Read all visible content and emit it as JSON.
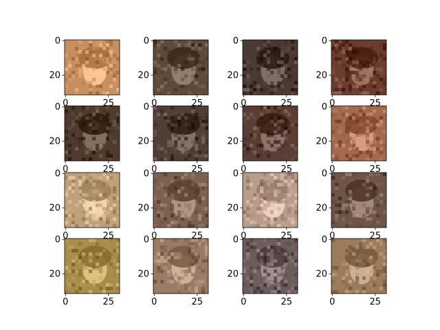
{
  "tick_labels": {
    "y": [
      "0",
      "20"
    ],
    "x": [
      "0",
      "25"
    ]
  },
  "subplots": [
    {
      "tone": "#c89060"
    },
    {
      "tone": "#5c4a3a"
    },
    {
      "tone": "#4b3a34"
    },
    {
      "tone": "#6a3d2e"
    },
    {
      "tone": "#4f3b2c"
    },
    {
      "tone": "#4f3f34"
    },
    {
      "tone": "#5a3d34"
    },
    {
      "tone": "#a2694f"
    },
    {
      "tone": "#c0a27a"
    },
    {
      "tone": "#7d6150"
    },
    {
      "tone": "#b89c8c"
    },
    {
      "tone": "#6e5449"
    },
    {
      "tone": "#a88d4c"
    },
    {
      "tone": "#9a7c66"
    },
    {
      "tone": "#6c5c5c"
    },
    {
      "tone": "#9b7b5c"
    }
  ]
}
